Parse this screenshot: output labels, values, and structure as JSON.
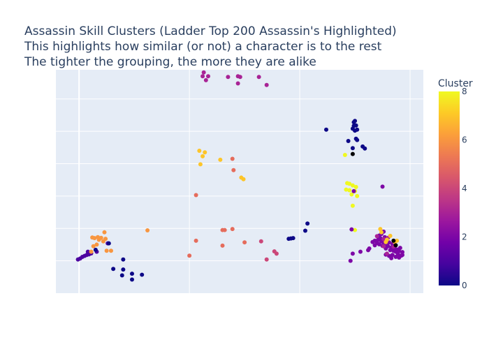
{
  "chart_data": {
    "type": "scatter",
    "title_lines": [
      "Assassin Skill Clusters (Ladder Top 200 Assassin's Highlighted)",
      "This highlights how similar (or not) a character is to the rest",
      "The tighter the grouping, the more they are alike"
    ],
    "xlim": [
      -2.1,
      31.2
    ],
    "ylim": [
      -1.0,
      5.9
    ],
    "x_ticks": [
      0,
      10,
      20,
      30
    ],
    "y_ticks": [
      0,
      1,
      2,
      3,
      4,
      5
    ],
    "show_tick_labels": false,
    "grid": true,
    "colorscale": {
      "title": "Cluster",
      "min": 0,
      "max": 8,
      "ticks": [
        0,
        2,
        4,
        6,
        8
      ],
      "stops": [
        "#0d0887",
        "#46039f",
        "#7201a8",
        "#9c179e",
        "#bd3786",
        "#d8576b",
        "#ed7953",
        "#fb9f3a",
        "#fdca26",
        "#f0f921"
      ]
    },
    "highlight_color": "#000000",
    "points": [
      [
        -0.1,
        0.04,
        1
      ],
      [
        0.1,
        0.07,
        1
      ],
      [
        0.3,
        0.12,
        1
      ],
      [
        0.5,
        0.15,
        1
      ],
      [
        0.7,
        0.18,
        1
      ],
      [
        0.9,
        0.2,
        1
      ],
      [
        1.1,
        0.23,
        1
      ],
      [
        0.8,
        0.28,
        1
      ],
      [
        1.6,
        0.28,
        1
      ],
      [
        2.6,
        0.54,
        1
      ],
      [
        1.3,
        0.45,
        6
      ],
      [
        1.6,
        0.5,
        6
      ],
      [
        1.8,
        0.65,
        6
      ],
      [
        2.2,
        0.6,
        6
      ],
      [
        2.4,
        0.68,
        6
      ],
      [
        1.4,
        0.7,
        6
      ],
      [
        1.7,
        0.73,
        6
      ],
      [
        2.0,
        0.71,
        6
      ],
      [
        2.3,
        0.88,
        6
      ],
      [
        1.2,
        0.72,
        6
      ],
      [
        2.5,
        0.31,
        6
      ],
      [
        2.9,
        0.31,
        6
      ],
      [
        1.1,
        0.28,
        6
      ],
      [
        6.2,
        0.94,
        6
      ],
      [
        1.5,
        0.34,
        0
      ],
      [
        2.7,
        0.54,
        0
      ],
      [
        4.0,
        0.04,
        0
      ],
      [
        3.1,
        -0.25,
        0
      ],
      [
        4.0,
        -0.27,
        0
      ],
      [
        3.9,
        -0.45,
        0
      ],
      [
        4.8,
        -0.4,
        0
      ],
      [
        5.7,
        -0.43,
        0
      ],
      [
        4.8,
        -0.58,
        0
      ],
      [
        11.0,
        2.98,
        7
      ],
      [
        11.2,
        3.23,
        7
      ],
      [
        10.9,
        3.4,
        7
      ],
      [
        11.4,
        3.35,
        7
      ],
      [
        12.8,
        3.12,
        7
      ],
      [
        14.7,
        2.57,
        7
      ],
      [
        14.9,
        2.52,
        7
      ],
      [
        10.6,
        2.03,
        5
      ],
      [
        10.6,
        0.62,
        5
      ],
      [
        13.9,
        3.15,
        5
      ],
      [
        14.0,
        2.8,
        5
      ],
      [
        13.0,
        0.95,
        5
      ],
      [
        13.2,
        0.95,
        5
      ],
      [
        13.9,
        0.98,
        5
      ],
      [
        15.0,
        0.57,
        5
      ],
      [
        13.0,
        0.47,
        5
      ],
      [
        10.0,
        0.16,
        5
      ],
      [
        16.5,
        0.6,
        4
      ],
      [
        17.0,
        0.04,
        4
      ],
      [
        17.7,
        0.29,
        4
      ],
      [
        17.9,
        0.22,
        4
      ],
      [
        11.3,
        5.82,
        3
      ],
      [
        11.5,
        5.58,
        3
      ],
      [
        11.2,
        5.7,
        3
      ],
      [
        11.7,
        5.7,
        3
      ],
      [
        13.5,
        5.68,
        3
      ],
      [
        14.6,
        5.68,
        3
      ],
      [
        14.4,
        5.7,
        3
      ],
      [
        14.4,
        5.48,
        3
      ],
      [
        16.3,
        5.68,
        3
      ],
      [
        17.0,
        5.43,
        3
      ],
      [
        19.0,
        0.68,
        0
      ],
      [
        19.2,
        0.69,
        0
      ],
      [
        19.4,
        0.7,
        0
      ],
      [
        20.5,
        0.93,
        0
      ],
      [
        20.7,
        1.15,
        0
      ],
      [
        22.4,
        4.05,
        0
      ],
      [
        24.9,
        4.28,
        0
      ],
      [
        25.0,
        4.32,
        0
      ],
      [
        24.9,
        4.17,
        0
      ],
      [
        25.1,
        4.18,
        0
      ],
      [
        25.2,
        4.05,
        0
      ],
      [
        25.0,
        4.02,
        0
      ],
      [
        24.8,
        4.08,
        0
      ],
      [
        25.1,
        3.77,
        0
      ],
      [
        25.2,
        3.73,
        0
      ],
      [
        24.4,
        3.7,
        0
      ],
      [
        24.8,
        3.48,
        0
      ],
      [
        25.7,
        3.53,
        0
      ],
      [
        25.9,
        3.47,
        0
      ],
      [
        24.1,
        3.27,
        8
      ],
      [
        24.3,
        2.4,
        8
      ],
      [
        24.5,
        2.38,
        8
      ],
      [
        24.8,
        2.33,
        8
      ],
      [
        25.1,
        2.28,
        8
      ],
      [
        24.2,
        2.2,
        8
      ],
      [
        24.5,
        2.18,
        8
      ],
      [
        25.0,
        2.15,
        8
      ],
      [
        24.7,
        2.05,
        8
      ],
      [
        25.2,
        2.0,
        8
      ],
      [
        24.8,
        1.7,
        8
      ],
      [
        25.0,
        0.95,
        8
      ],
      [
        24.9,
        2.15,
        2
      ],
      [
        27.5,
        2.29,
        2
      ],
      [
        24.7,
        0.97,
        2
      ],
      [
        24.6,
        0.0,
        2
      ],
      [
        24.8,
        0.22,
        2
      ],
      [
        25.5,
        0.28,
        2
      ],
      [
        26.2,
        0.33,
        2
      ],
      [
        26.3,
        0.38,
        2
      ],
      [
        26.8,
        0.48,
        2
      ],
      [
        27.0,
        0.58,
        2
      ],
      [
        27.2,
        0.78,
        2
      ],
      [
        27.4,
        0.83,
        2
      ],
      [
        27.6,
        0.9,
        2
      ],
      [
        26.6,
        0.58,
        2
      ],
      [
        26.8,
        0.62,
        2
      ],
      [
        27.0,
        0.55,
        2
      ],
      [
        27.1,
        0.65,
        2
      ],
      [
        27.2,
        0.51,
        2
      ],
      [
        27.3,
        0.7,
        2
      ],
      [
        27.4,
        0.6,
        2
      ],
      [
        27.5,
        0.46,
        2
      ],
      [
        27.6,
        0.55,
        2
      ],
      [
        27.7,
        0.73,
        2
      ],
      [
        27.8,
        0.38,
        2
      ],
      [
        27.9,
        0.49,
        2
      ],
      [
        28.0,
        0.45,
        2
      ],
      [
        28.1,
        0.57,
        2
      ],
      [
        28.2,
        0.33,
        2
      ],
      [
        28.3,
        0.41,
        2
      ],
      [
        28.4,
        0.52,
        2
      ],
      [
        28.5,
        0.31,
        2
      ],
      [
        28.6,
        0.38,
        2
      ],
      [
        28.7,
        0.28,
        2
      ],
      [
        28.8,
        0.35,
        2
      ],
      [
        28.9,
        0.21,
        2
      ],
      [
        29.0,
        0.3,
        2
      ],
      [
        29.1,
        0.4,
        2
      ],
      [
        29.2,
        0.16,
        2
      ],
      [
        29.3,
        0.27,
        2
      ],
      [
        27.8,
        0.19,
        2
      ],
      [
        28.1,
        0.15,
        2
      ],
      [
        28.4,
        0.18,
        2
      ],
      [
        28.7,
        0.12,
        2
      ],
      [
        29.0,
        0.1,
        2
      ],
      [
        28.3,
        0.08,
        2
      ],
      [
        29.3,
        0.18,
        2
      ],
      [
        27.0,
        0.76,
        3
      ],
      [
        27.6,
        0.45,
        3
      ],
      [
        27.9,
        0.22,
        3
      ],
      [
        28.5,
        0.44,
        3
      ],
      [
        28.0,
        0.71,
        3
      ],
      [
        27.6,
        0.67,
        3
      ],
      [
        27.4,
        0.88,
        7
      ],
      [
        27.9,
        0.65,
        7
      ],
      [
        28.2,
        0.77,
        7
      ],
      [
        28.6,
        0.58,
        7
      ],
      [
        27.3,
        0.98,
        7
      ],
      [
        27.8,
        0.58,
        7
      ],
      [
        28.8,
        0.62,
        7
      ]
    ],
    "highlighted": [
      [
        24.8,
        3.3
      ],
      [
        28.5,
        0.62
      ],
      [
        28.7,
        0.48
      ]
    ]
  }
}
